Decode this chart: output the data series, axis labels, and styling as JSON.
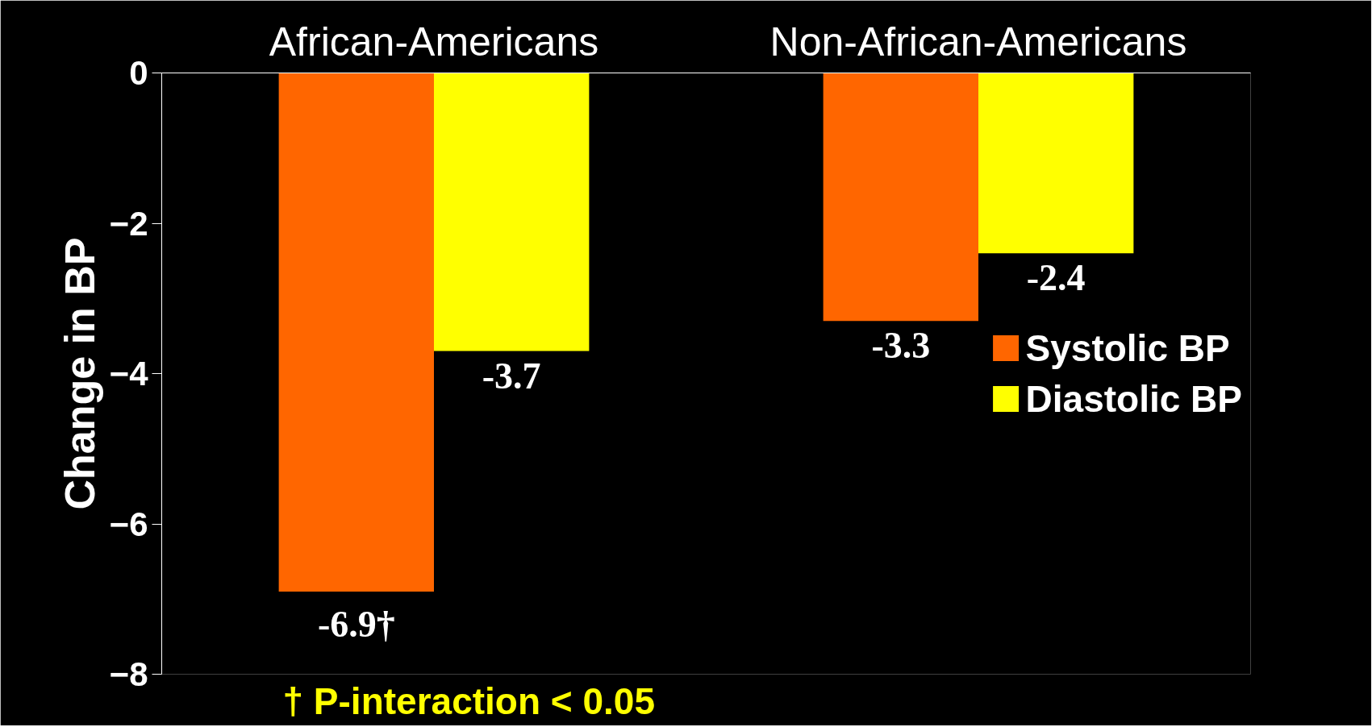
{
  "chart_data": {
    "type": "bar",
    "categories": [
      "African-Americans",
      "Non-African-Americans"
    ],
    "ylabel": "Change in BP",
    "series": [
      {
        "name": "Systolic BP",
        "color": "#ff6600",
        "values": [
          -6.9,
          -3.3
        ],
        "value_labels": [
          "-6.9†",
          "-3.3"
        ]
      },
      {
        "name": "Diastolic BP",
        "color": "#ffff00",
        "values": [
          -3.7,
          -2.4
        ],
        "value_labels": [
          "-3.7",
          "-2.4"
        ]
      }
    ],
    "ylim": [
      -8,
      0
    ],
    "yticks": [
      -8,
      -6,
      -4,
      -2,
      0
    ],
    "grid": false,
    "legend": "right",
    "annotations": [
      "† P-interaction < 0.05"
    ]
  }
}
